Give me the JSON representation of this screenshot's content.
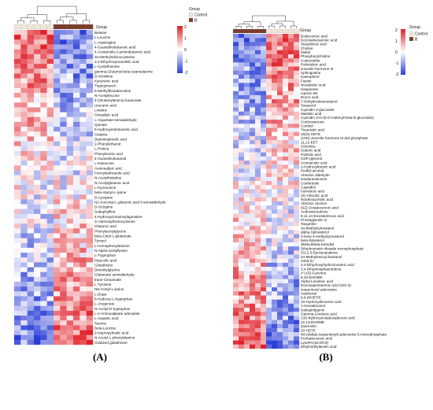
{
  "chart_data": [
    {
      "type": "heatmap",
      "panel_label": "(A)",
      "legend_title": "Group",
      "groups": [
        {
          "name": "Control",
          "color": "#efe6d8"
        },
        {
          "name": "B",
          "color": "#7a3b2c"
        }
      ],
      "color_scale": {
        "min": -2,
        "max": 2,
        "ticks": [
          2,
          1,
          0,
          -1,
          -2
        ],
        "low": "#2b3fd6",
        "mid": "#ffffff",
        "high": "#e0222a"
      },
      "n_samples_per_group": 6,
      "rows": [
        "Betaine",
        "L-Leucine",
        "L-Asparagine",
        "4-Guanidinobutanoic acid",
        "4-Acetamido-2-aminobutanoic acid",
        "Se-Methylselenocysteine",
        "3,4-Dihydroxymandelic acid",
        "L-Cystathionine",
        "gamma-Glutamyl-beta-cyanoalanine",
        "D-Ornithine",
        "Kynurenic acid",
        "Tryptophanol",
        "5-Methylthioadenosine",
        "N-Acetylleucine",
        "4-(Glutamylamino) butanoate",
        "Urocanic acid",
        "Linatine",
        "Oxoadipic acid",
        "L-Aspartate-semialdehyde",
        "Quinate",
        "5-Hydroxyindoleacetic acid",
        "Citiatine",
        "Diaminopimelic acid",
        "2-Phenylethanol",
        "L-Proline",
        "Phenylacetic acid",
        "4-Guanidinobutanal",
        "L-Isoleucine",
        "Aminoadipic acid",
        "Formylanthranilic acid",
        "N-Acetylhistidine",
        "N-Acetylglutamic acid",
        "L-Kynurenine",
        "beta-Alanyl-L-lysine",
        "D-Lysopine",
        "N2-Succinyl-L-glutamic acid 5-semialdehyde",
        "D-Octopine",
        "Subaphylline",
        "4-Hydroxycinnamoylagmatine",
        "S-Adenosylhomocysteine",
        "Glutamic acid",
        "Phenylacetylglycine",
        "beta-Citryl-L-glutamate",
        "Tyrosol",
        "L-Homophenylalanine",
        "N-Alpha-acetyllysine",
        "L-Tryptophan",
        "Pipecolic acid",
        "Glutathione",
        "Dimethylglycine",
        "Glutamate semialdehyde",
        "trans-Cinnamate",
        "L-Tyrosine",
        "N6-Acetyl-L-lysine",
        "L-Dopa",
        "5-Hydroxy-L-tryptophan",
        "L-Arogenate",
        "N-Acetyl-D-tryptophan",
        "L-2-Aminoadipate adenylate",
        "L-Aspartic acid",
        "Taurine",
        "Beta-Leucine",
        "2-Isopropylmalic acid",
        "N-Acetyl-L-phenylalanine",
        "Oxidized glutathione"
      ]
    },
    {
      "type": "heatmap",
      "panel_label": "(B)",
      "legend_title": "Group",
      "groups": [
        {
          "name": "Control",
          "color": "#efe6d8"
        },
        {
          "name": "B",
          "color": "#7a3b2c"
        }
      ],
      "color_scale": {
        "min": -2,
        "max": 2,
        "ticks": [
          2,
          1,
          0,
          -1,
          -2
        ],
        "low": "#2b3fd6",
        "mid": "#ffffff",
        "high": "#e0222a"
      },
      "n_samples_per_group": 6,
      "rows": [
        "Dodecanoic acid",
        "Docosahexaenoic acid",
        "Stearidonic acid",
        "Choline",
        "Maltol",
        "Phosphorylcholine",
        "Costunolide",
        "Palmitoleic acid",
        "Juvenile hormone III",
        "Sphingosine",
        "Kaempferol",
        "Fisetin",
        "Neoabietic acid",
        "Hesperetin",
        "Lipoxin B4",
        "Erucic acid",
        "7-Dehydrodesmosterol",
        "Taraxerol",
        "Cyanidin 3-glucoside",
        "Maslinic acid",
        "Cyanidin 3-O-(6-O-malonyl-beta-D-glucoside)",
        "Corticosterone",
        "Cortisol",
        "Traumatic acid",
        "19(S)-HETE",
        "(10S)-Juvenile hormone III diol phosphate",
        "11,12-EET",
        "Citicoline",
        "Suberic acid",
        "Palmitic acid",
        "CDP-glycerol",
        "Acetoacetic acid",
        "2-Hydroxybutyric acid",
        "Perillyl alcohol",
        "Abscisic aldehyde",
        "Isoalantolactone",
        "Confertiolin",
        "Capsidiol",
        "Farnesoic acid",
        "(S)-Abscisic acid",
        "Nordeoxycholic acid",
        "Abscisic alcohol",
        "(6Z)-Octadecenoic acid",
        "Androstenedione",
        "8,11,14-Eicosatrienoic acid",
        "Prostaglandin I2",
        "Tangeritin",
        "4a-Methylzymosterol",
        "alpha-Spinasterol",
        "3-Keto-4-methylzymosterol",
        "beta-Sitosterol",
        "3beta,5beta-Ketodiol",
        "Dihydrozeatin riboside monophosphate",
        "(S)-2,3-Epoxysqualene",
        "24-Methylenecycloartanol",
        "CE(6:0)",
        "3,4-Dihydroxyhydrocinnamic acid",
        "3,4-Dihydrosphaeroidene",
        "(+)-(S)-Carvone",
        "9,10-DHOME",
        "Alpha-Linolenic acid",
        "Docosapentaenoic acid (22n-3)",
        "Isopentenyl adenosine",
        "Xanthoxin",
        "8,9-DiHETrE",
        "10-Hydroxydecanoic acid",
        "1-Hexadecanol",
        "Isoliquiritigenin",
        "Gamma-Linolenic acid",
        "13S-hydroxyoctadecadienoic acid",
        "12,13-DHOME",
        "Quercetin",
        "20-HETE",
        "N6-(delta2-Isopentenyl)-adenosine 5-monophosphate",
        "Pentadecanoic acid",
        "LysoPA(16:0/0:0)",
        "Ethylmethylacetic acid"
      ]
    }
  ]
}
